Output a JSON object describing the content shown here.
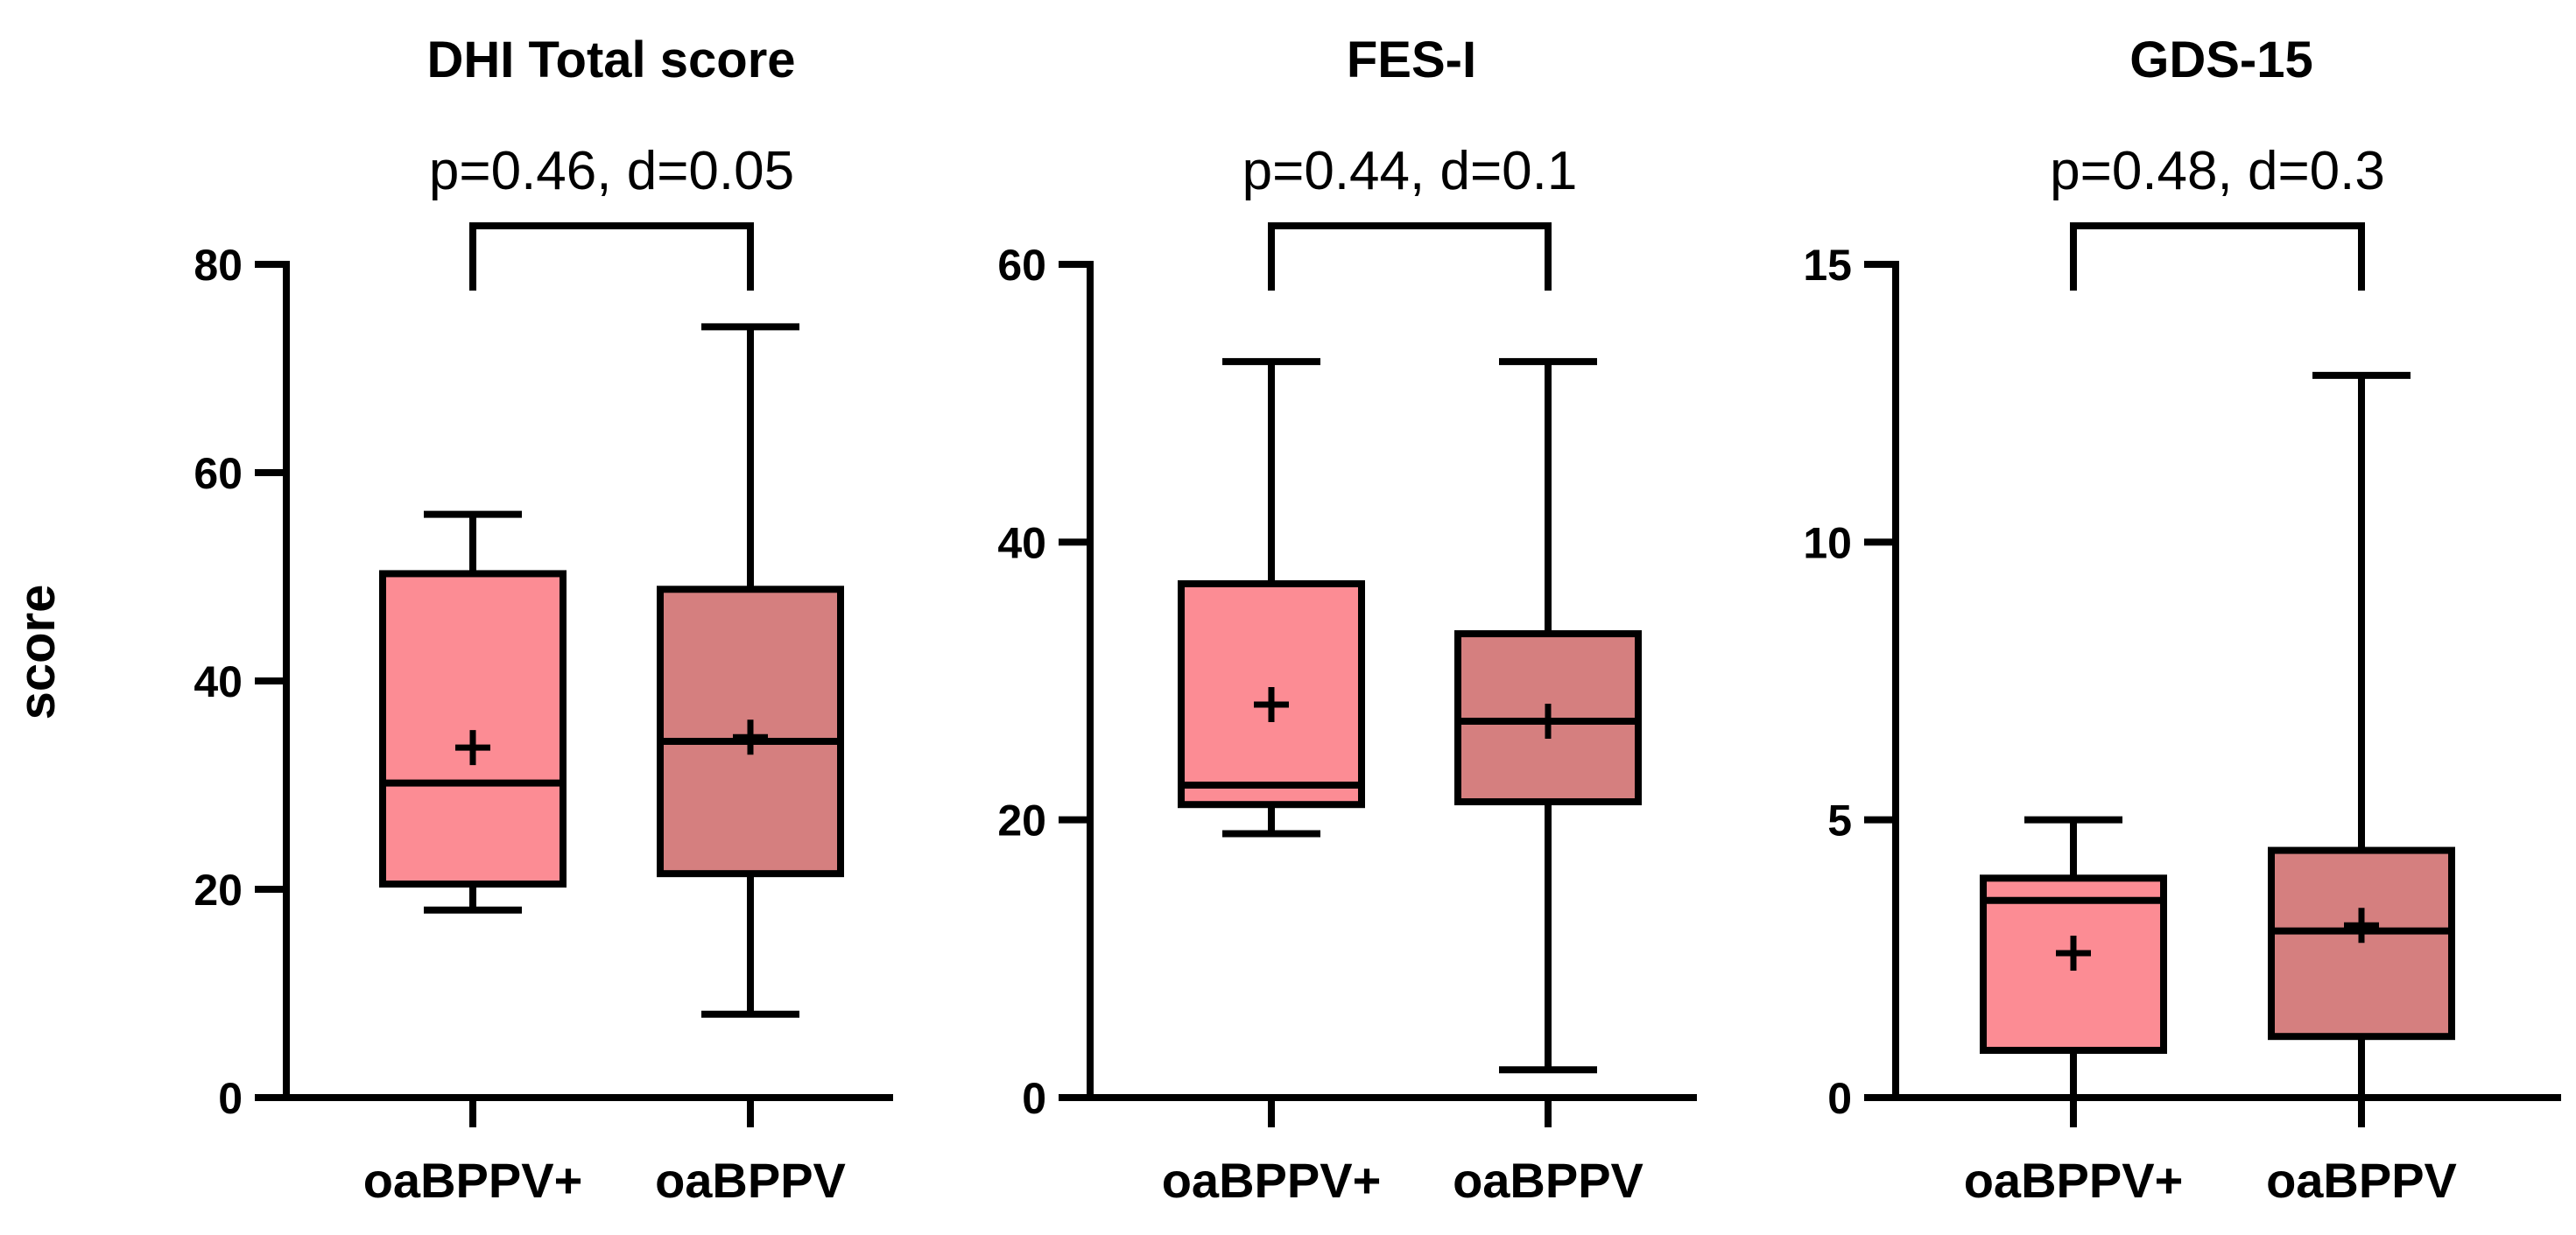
{
  "y_axis_label": "score",
  "chart_data": [
    {
      "type": "box",
      "title": "DHI Total score",
      "annotation": "p=0.46, d=0.05",
      "ylabel": "score",
      "ylim": [
        0,
        80
      ],
      "yticks": [
        0,
        20,
        40,
        60,
        80
      ],
      "categories": [
        "oaBPPV+",
        "oaBPPV"
      ],
      "boxes": [
        {
          "name": "oaBPPV+",
          "min": 18,
          "q1": 20.5,
          "median": 30.2,
          "q3": 50.3,
          "max": 56,
          "mean": 33.6,
          "color": "#fc8c94"
        },
        {
          "name": "oaBPPV",
          "min": 8,
          "q1": 21.5,
          "median": 34.2,
          "q3": 48.8,
          "max": 74,
          "mean": 34.6,
          "color": "#d57f7f"
        }
      ]
    },
    {
      "type": "box",
      "title": "FES-I",
      "annotation": "p=0.44, d=0.1",
      "ylabel": "",
      "ylim": [
        0,
        60
      ],
      "yticks": [
        0,
        20,
        40,
        60
      ],
      "categories": [
        "oaBPPV+",
        "oaBPPV"
      ],
      "boxes": [
        {
          "name": "oaBPPV+",
          "min": 19,
          "q1": 21.1,
          "median": 22.5,
          "q3": 37,
          "max": 53,
          "mean": 28.3,
          "color": "#fc8c94"
        },
        {
          "name": "oaBPPV",
          "min": 2,
          "q1": 21.3,
          "median": 27.1,
          "q3": 33.4,
          "max": 53,
          "mean": 27.1,
          "color": "#d57f7f"
        }
      ]
    },
    {
      "type": "box",
      "title": "GDS-15",
      "annotation": "p=0.48, d=0.3",
      "ylabel": "",
      "ylim": [
        0,
        15
      ],
      "yticks": [
        0,
        5,
        10,
        15
      ],
      "categories": [
        "oaBPPV+",
        "oaBPPV"
      ],
      "boxes": [
        {
          "name": "oaBPPV+",
          "min": 0,
          "q1": 0.85,
          "median": 3.55,
          "q3": 3.95,
          "max": 5,
          "mean": 2.6,
          "color": "#fc8c94"
        },
        {
          "name": "oaBPPV",
          "min": 0,
          "q1": 1.1,
          "median": 3.0,
          "q3": 4.45,
          "max": 13,
          "mean": 3.1,
          "color": "#d57f7f"
        }
      ]
    }
  ]
}
